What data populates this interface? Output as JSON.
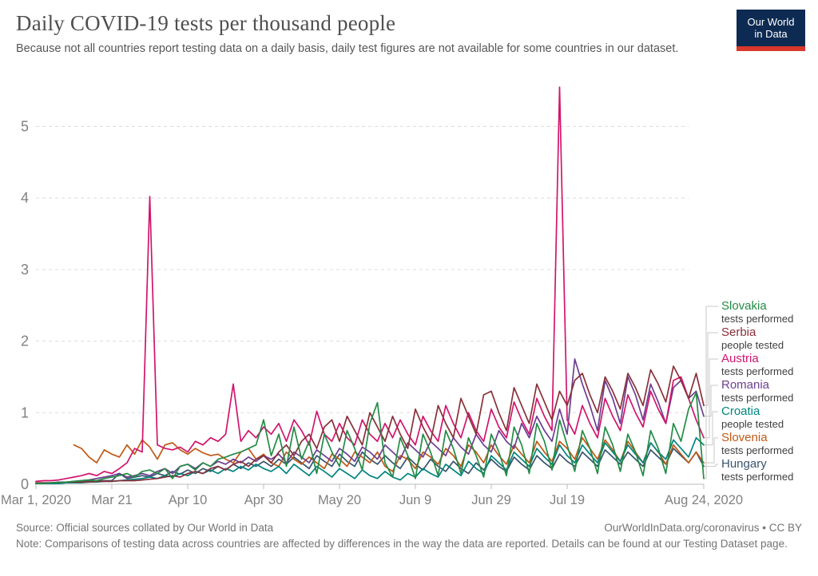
{
  "header": {
    "title": "Daily COVID-19 tests per thousand people",
    "subtitle": "Because not all countries report testing data on a daily basis, daily test figures are not available for some countries in our dataset.",
    "logo": {
      "line1": "Our World",
      "line2": "in Data",
      "bg_color": "#0d2a52",
      "accent_color": "#d8372a"
    }
  },
  "footer": {
    "source": "Source: Official sources collated by Our World in Data",
    "attribution": "OurWorldInData.org/coronavirus • CC BY",
    "note": "Note: Comparisons of testing data across countries are affected by differences in the way the data are reported. Details can be found at our Testing Dataset page."
  },
  "chart_data": {
    "type": "line",
    "title": "Daily COVID-19 tests per thousand people",
    "grid": "dashed-horizontal",
    "legend_position": "right",
    "x_axis": {
      "total_days": 176,
      "tick_days": [
        0,
        20,
        40,
        60,
        80,
        100,
        120,
        140,
        176
      ],
      "tick_labels": [
        "Mar 1, 2020",
        "Mar 21",
        "Apr 10",
        "Apr 30",
        "May 20",
        "Jun 9",
        "Jun 29",
        "Jul 19",
        "Aug 24, 2020"
      ]
    },
    "y_axis": {
      "ticks": [
        0,
        1,
        2,
        3,
        4,
        5
      ],
      "min": 0,
      "max": 5.6
    },
    "series": [
      {
        "name": "Slovakia",
        "metric": "tests performed",
        "color": "#238b45",
        "start_day": 0,
        "step": 2,
        "values": [
          0.01,
          0.01,
          0.02,
          0.02,
          0.03,
          0.04,
          0.05,
          0.06,
          0.05,
          0.08,
          0.1,
          0.12,
          0.15,
          0.1,
          0.18,
          0.2,
          0.15,
          0.22,
          0.08,
          0.25,
          0.28,
          0.2,
          0.3,
          0.25,
          0.35,
          0.38,
          0.42,
          0.45,
          0.5,
          0.55,
          0.9,
          0.4,
          0.7,
          0.25,
          0.8,
          0.35,
          0.6,
          0.15,
          0.7,
          0.45,
          0.25,
          0.75,
          0.5,
          0.2,
          0.85,
          1.14,
          0.3,
          0.1,
          0.65,
          0.4,
          0.08,
          0.7,
          0.45,
          0.12,
          0.75,
          0.5,
          0.15,
          0.65,
          0.4,
          0.1,
          0.7,
          0.45,
          0.12,
          0.8,
          0.55,
          0.15,
          0.85,
          0.6,
          0.2,
          0.9,
          0.55,
          0.18,
          0.75,
          0.5,
          0.15,
          0.8,
          0.55,
          0.18,
          0.7,
          0.45,
          0.12,
          0.75,
          0.5,
          0.15,
          0.85,
          0.6,
          1.05,
          1.28,
          0.08
        ]
      },
      {
        "name": "Serbia",
        "metric": "people tested",
        "color": "#883039",
        "start_day": 0,
        "step": 2,
        "values": [
          0.02,
          0.02,
          0.02,
          0.02,
          0.03,
          0.03,
          0.03,
          0.03,
          0.04,
          0.04,
          0.04,
          0.05,
          0.05,
          0.05,
          0.06,
          0.07,
          0.08,
          0.1,
          0.12,
          0.1,
          0.15,
          0.18,
          0.15,
          0.22,
          0.25,
          0.2,
          0.28,
          0.32,
          0.25,
          0.35,
          0.4,
          0.3,
          0.45,
          0.55,
          0.4,
          0.6,
          0.7,
          0.5,
          0.8,
          0.9,
          0.6,
          0.95,
          0.75,
          0.55,
          1.0,
          0.8,
          0.6,
          0.95,
          0.7,
          0.5,
          1.05,
          0.8,
          0.6,
          1.1,
          0.85,
          0.65,
          1.2,
          0.95,
          0.7,
          1.25,
          1.3,
          1.0,
          0.75,
          1.35,
          1.1,
          0.85,
          1.4,
          1.15,
          0.9,
          1.3,
          1.1,
          1.45,
          1.55,
          1.25,
          1.0,
          1.5,
          1.3,
          1.05,
          1.55,
          1.35,
          1.1,
          1.6,
          1.4,
          1.15,
          1.65,
          1.45,
          1.2,
          1.55,
          1.1
        ]
      },
      {
        "name": "Austria",
        "metric": "tests performed",
        "color": "#d1156d",
        "start_day": 0,
        "step": 2,
        "values": [
          0.04,
          0.05,
          0.05,
          0.06,
          0.08,
          0.1,
          0.12,
          0.15,
          0.12,
          0.18,
          0.15,
          0.22,
          0.3,
          0.5,
          0.45,
          4.02,
          0.55,
          0.5,
          0.48,
          0.52,
          0.45,
          0.6,
          0.55,
          0.65,
          0.6,
          0.7,
          1.4,
          0.6,
          0.75,
          0.65,
          0.8,
          0.7,
          0.85,
          0.6,
          0.9,
          0.75,
          0.55,
          1.02,
          0.7,
          0.6,
          0.85,
          0.65,
          0.55,
          0.9,
          0.7,
          0.6,
          0.85,
          0.65,
          0.9,
          0.7,
          0.55,
          0.95,
          0.75,
          0.6,
          1.1,
          0.85,
          0.65,
          1.0,
          0.75,
          0.6,
          1.05,
          0.8,
          0.65,
          1.15,
          0.9,
          0.7,
          1.2,
          0.95,
          0.75,
          5.55,
          0.9,
          0.7,
          1.1,
          0.85,
          0.65,
          1.2,
          0.95,
          0.75,
          1.25,
          1.0,
          0.8,
          1.3,
          1.05,
          0.85,
          1.45,
          1.5,
          1.2,
          0.9,
          0.65
        ]
      },
      {
        "name": "Romania",
        "metric": "tests performed",
        "color": "#6d3e91",
        "start_day": 0,
        "step": 2,
        "values": [
          0.01,
          0.01,
          0.02,
          0.02,
          0.03,
          0.04,
          0.05,
          0.06,
          0.08,
          0.1,
          0.12,
          0.15,
          0.1,
          0.12,
          0.15,
          0.12,
          0.18,
          0.22,
          0.15,
          0.25,
          0.28,
          0.22,
          0.3,
          0.25,
          0.32,
          0.28,
          0.35,
          0.3,
          0.38,
          0.32,
          0.4,
          0.35,
          0.42,
          0.3,
          0.45,
          0.38,
          0.3,
          0.48,
          0.4,
          0.32,
          0.5,
          0.42,
          0.32,
          0.52,
          0.45,
          0.35,
          0.55,
          0.45,
          0.35,
          0.58,
          0.48,
          0.38,
          0.6,
          0.5,
          0.4,
          0.65,
          0.52,
          0.42,
          0.7,
          0.55,
          0.45,
          0.75,
          0.6,
          0.5,
          0.85,
          0.65,
          0.95,
          0.75,
          0.6,
          1.05,
          0.7,
          1.75,
          1.4,
          1.1,
          0.75,
          1.45,
          1.2,
          0.85,
          1.5,
          1.25,
          0.9,
          1.4,
          1.15,
          0.85,
          1.35,
          1.45,
          1.2,
          1.3,
          0.95
        ]
      },
      {
        "name": "Croatia",
        "metric": "people tested",
        "color": "#00847e",
        "start_day": 0,
        "step": 2,
        "values": [
          0.01,
          0.01,
          0.01,
          0.01,
          0.02,
          0.02,
          0.02,
          0.03,
          0.03,
          0.04,
          0.04,
          0.05,
          0.06,
          0.07,
          0.08,
          0.1,
          0.08,
          0.12,
          0.1,
          0.15,
          0.12,
          0.18,
          0.15,
          0.2,
          0.15,
          0.22,
          0.18,
          0.25,
          0.2,
          0.28,
          0.22,
          0.18,
          0.25,
          0.15,
          0.28,
          0.2,
          0.12,
          0.25,
          0.18,
          0.1,
          0.22,
          0.15,
          0.08,
          0.2,
          0.12,
          0.08,
          0.18,
          0.1,
          0.06,
          0.15,
          0.1,
          0.22,
          0.15,
          0.1,
          0.28,
          0.2,
          0.12,
          0.32,
          0.22,
          0.15,
          0.4,
          0.3,
          0.2,
          0.45,
          0.35,
          0.25,
          0.5,
          0.38,
          0.28,
          0.55,
          0.4,
          0.3,
          0.55,
          0.42,
          0.3,
          0.58,
          0.45,
          0.32,
          0.55,
          0.42,
          0.3,
          0.58,
          0.45,
          0.35,
          0.62,
          0.5,
          0.38,
          0.65,
          0.55
        ]
      },
      {
        "name": "Slovenia",
        "metric": "tests performed",
        "color": "#c05917",
        "start_day": 10,
        "step": 2,
        "values": [
          0.55,
          0.5,
          0.38,
          0.3,
          0.48,
          0.42,
          0.38,
          0.55,
          0.42,
          0.62,
          0.52,
          0.35,
          0.55,
          0.58,
          0.48,
          0.42,
          0.5,
          0.44,
          0.4,
          0.42,
          0.35,
          0.3,
          0.45,
          0.5,
          0.35,
          0.42,
          0.3,
          0.25,
          0.45,
          0.35,
          0.28,
          0.38,
          0.3,
          0.22,
          0.42,
          0.35,
          0.25,
          0.45,
          0.38,
          0.3,
          0.45,
          0.25,
          0.18,
          0.4,
          0.35,
          0.22,
          0.45,
          0.38,
          0.28,
          0.5,
          0.4,
          0.25,
          0.55,
          0.45,
          0.3,
          0.55,
          0.4,
          0.28,
          0.55,
          0.42,
          0.3,
          0.6,
          0.45,
          0.32,
          0.6,
          0.5,
          0.35,
          0.65,
          0.5,
          0.35,
          0.62,
          0.48,
          0.32,
          0.6,
          0.45,
          0.3,
          0.58,
          0.45,
          0.28,
          0.55,
          0.42,
          0.3,
          0.45,
          0.3
        ]
      },
      {
        "name": "Hungary",
        "metric": "tests performed",
        "color": "#38536c",
        "start_day": 0,
        "step": 2,
        "values": [
          0.02,
          0.02,
          0.02,
          0.03,
          0.03,
          0.03,
          0.04,
          0.04,
          0.05,
          0.05,
          0.05,
          0.15,
          0.08,
          0.1,
          0.12,
          0.1,
          0.15,
          0.12,
          0.18,
          0.14,
          0.2,
          0.15,
          0.22,
          0.18,
          0.25,
          0.2,
          0.28,
          0.22,
          0.3,
          0.25,
          0.32,
          0.25,
          0.35,
          0.28,
          0.38,
          0.3,
          0.22,
          0.4,
          0.32,
          0.25,
          0.42,
          0.32,
          0.25,
          0.45,
          0.35,
          0.28,
          0.4,
          0.3,
          0.22,
          0.38,
          0.28,
          0.2,
          0.35,
          0.25,
          0.18,
          0.32,
          0.22,
          0.15,
          0.3,
          0.2,
          0.35,
          0.25,
          0.18,
          0.38,
          0.28,
          0.2,
          0.4,
          0.3,
          0.22,
          0.42,
          0.32,
          0.25,
          0.45,
          0.35,
          0.25,
          0.48,
          0.38,
          0.28,
          0.45,
          0.35,
          0.25,
          0.48,
          0.38,
          0.28,
          0.5,
          0.4,
          0.3,
          0.45,
          0.25
        ]
      }
    ]
  }
}
